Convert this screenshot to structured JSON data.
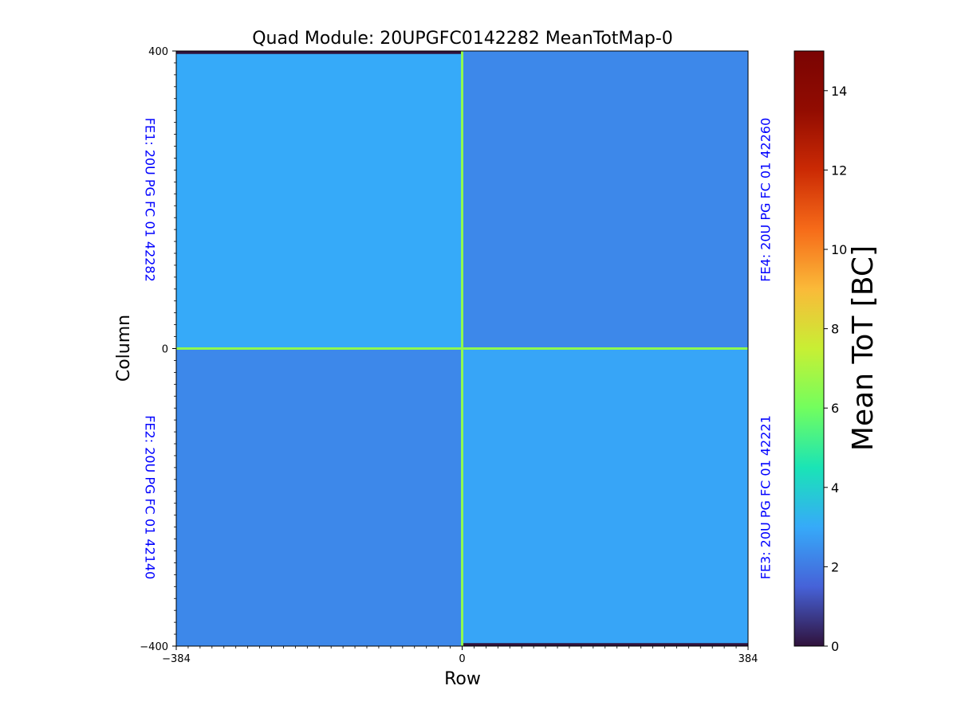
{
  "chart_data": {
    "type": "heatmap",
    "title": "Quad Module: 20UPGFC0142282 MeanTotMap-0",
    "xlabel": "Row",
    "ylabel": "Column",
    "xlim": [
      -384,
      384
    ],
    "ylim": [
      -400,
      400
    ],
    "x_ticks": [
      -384,
      0,
      384
    ],
    "y_ticks": [
      -400,
      0,
      400
    ],
    "x_tick_labels": [
      "−384",
      "0",
      "384"
    ],
    "y_tick_labels": [
      "−400",
      "0",
      "400"
    ],
    "colorbar": {
      "label": "Mean ToT [BC]",
      "colormap": "turbo",
      "range": [
        0,
        15
      ],
      "ticks": [
        0,
        2,
        4,
        6,
        8,
        10,
        12,
        14
      ],
      "tick_labels": [
        "0",
        "2",
        "4",
        "6",
        "8",
        "10",
        "12",
        "14"
      ]
    },
    "frontends": [
      {
        "label": "FE1: 20U PG FC 01 42282",
        "position": "top-left",
        "x_range": [
          -384,
          0
        ],
        "y_range": [
          0,
          400
        ],
        "mean_tot": 3.0
      },
      {
        "label": "FE4: 20U PG FC 01 42260",
        "position": "top-right",
        "x_range": [
          0,
          384
        ],
        "y_range": [
          0,
          400
        ],
        "mean_tot": 2.3
      },
      {
        "label": "FE2: 20U PG FC 01 42140",
        "position": "bottom-left",
        "x_range": [
          -384,
          0
        ],
        "y_range": [
          -400,
          0
        ],
        "mean_tot": 2.3
      },
      {
        "label": "FE3: 20U PG FC 01 42221",
        "position": "bottom-right",
        "x_range": [
          0,
          384
        ],
        "y_range": [
          -400,
          0
        ],
        "mean_tot": 2.9
      }
    ],
    "seam_lines": {
      "value": 6.5,
      "x": 0,
      "y": 0
    },
    "empty_bands": [
      {
        "x_range": [
          -384,
          0
        ],
        "y_range": [
          396,
          400
        ],
        "value": 0
      },
      {
        "x_range": [
          0,
          384
        ],
        "y_range": [
          -400,
          -396
        ],
        "value": 0
      }
    ],
    "fe_label_color": "#0000ff"
  }
}
